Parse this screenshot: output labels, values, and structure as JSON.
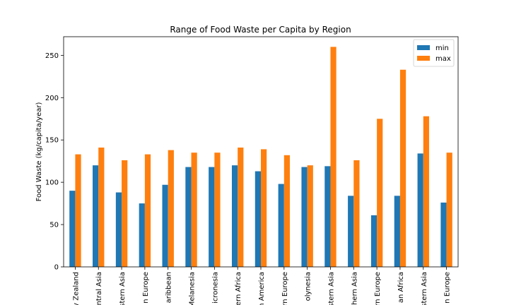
{
  "chart_data": {
    "type": "bar",
    "title": "Range of Food Waste per Capita by Region",
    "xlabel": "",
    "ylabel": "Food Waste (kg/capita/year)",
    "ylim": [
      0,
      272
    ],
    "yticks": [
      0,
      50,
      100,
      150,
      200,
      250
    ],
    "grid": false,
    "legend_position": "top-right",
    "categories": [
      "y Zealand",
      "ntral Asia",
      "stern Asia",
      "n Europe",
      "aribbean",
      "Melanesia",
      "icronesia",
      "ern Africa",
      "n America",
      "rn Europe",
      "olynesia",
      "stern Asia",
      "thern Asia",
      "rn Europe",
      "an Africa",
      "stern Asia",
      "n Europe"
    ],
    "series": [
      {
        "name": "min",
        "color": "#1f77b4",
        "values": [
          90,
          120,
          88,
          75,
          97,
          118,
          118,
          120,
          113,
          98,
          118,
          119,
          84,
          61,
          84,
          134,
          76
        ]
      },
      {
        "name": "max",
        "color": "#ff7f0e",
        "values": [
          133,
          141,
          126,
          133,
          138,
          135,
          135,
          141,
          139,
          132,
          120,
          260,
          126,
          175,
          233,
          178,
          135
        ]
      }
    ]
  }
}
